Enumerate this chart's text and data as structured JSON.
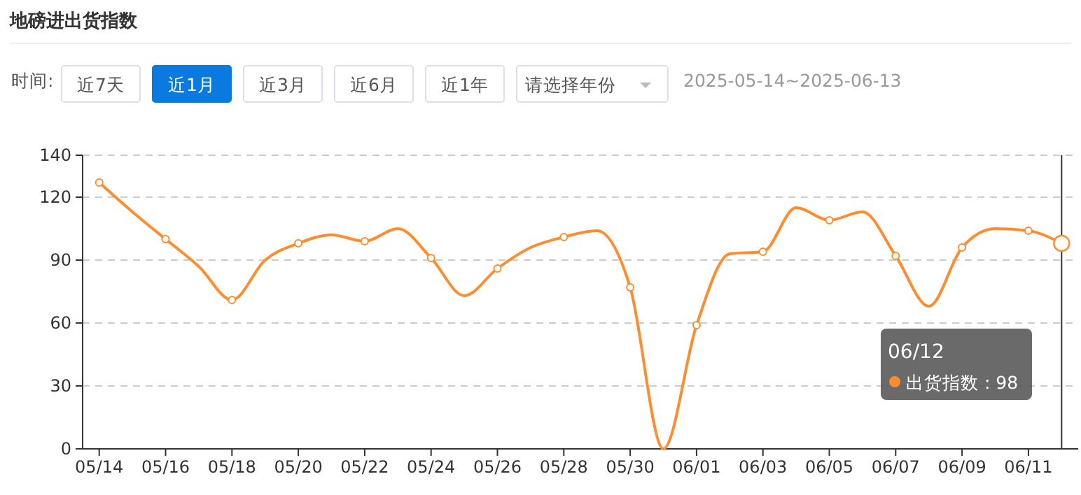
{
  "chart_data": {
    "type": "line",
    "title": "地磅进出货指数",
    "annotations": [
      "时间:",
      "近7天",
      "近1月",
      "近3月",
      "近6月",
      "近1年",
      "请选择年份",
      "2025-05-14~2025-06-13",
      "出货指数 : 98"
    ],
    "categories": [
      "05/14",
      null,
      "05/16",
      null,
      "05/18",
      null,
      "05/20",
      null,
      "05/22",
      null,
      "05/24",
      null,
      "05/26",
      null,
      "05/28",
      null,
      "05/30",
      null,
      "06/01",
      null,
      "06/03",
      null,
      "06/05",
      null,
      "06/07",
      null,
      "06/09",
      null,
      "06/11",
      null
    ],
    "series": [
      {
        "color": "#ff8c2e",
        "values": [
          127,
          113,
          100,
          87,
          71,
          90,
          98,
          102,
          99,
          105,
          91,
          73,
          86,
          96,
          101,
          104,
          77,
          0,
          59,
          93,
          94,
          115,
          109,
          113,
          92,
          68,
          96,
          105,
          104,
          98
        ]
      }
    ],
    "ylim": [
      0,
      140
    ],
    "yticks": [
      0,
      30,
      60,
      90,
      120,
      140
    ],
    "grid": "y",
    "marker": "circle",
    "line_style": "solid",
    "ref_lines": [
      {
        "axis": "x",
        "value": "06/12",
        "color": "#333333"
      }
    ]
  }
}
